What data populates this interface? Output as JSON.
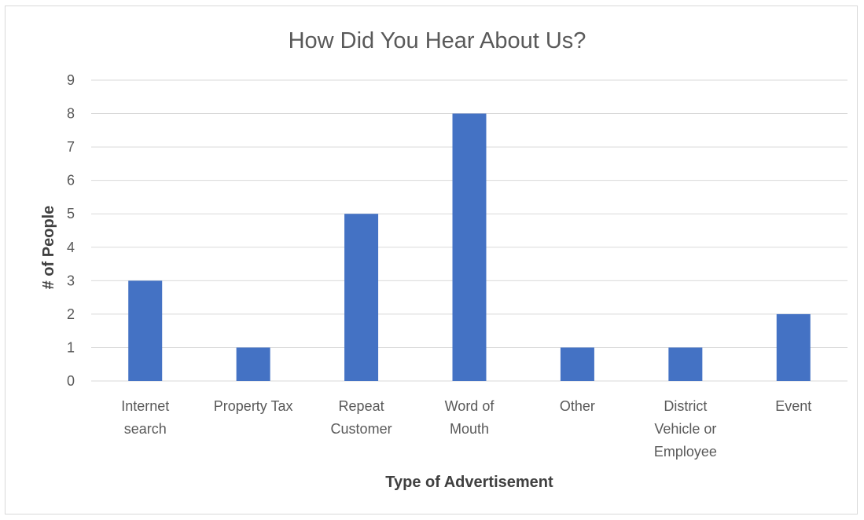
{
  "chart_data": {
    "type": "bar",
    "title": "How Did You Hear About Us?",
    "xlabel": "Type of Advertisement",
    "ylabel": "# of People",
    "categories": [
      [
        "Internet",
        "search"
      ],
      [
        "Property Tax"
      ],
      [
        "Repeat",
        "Customer"
      ],
      [
        "Word of",
        "Mouth"
      ],
      [
        "Other"
      ],
      [
        "District",
        "Vehicle or",
        "Employee"
      ],
      [
        "Event"
      ]
    ],
    "values": [
      3,
      1,
      5,
      8,
      1,
      1,
      2
    ],
    "ylim": [
      0,
      9
    ],
    "yticks": [
      0,
      1,
      2,
      3,
      4,
      5,
      6,
      7,
      8,
      9
    ],
    "grid": true,
    "legend": "none",
    "bar_color": "#4472C4",
    "grid_color": "#d9d9d9"
  }
}
